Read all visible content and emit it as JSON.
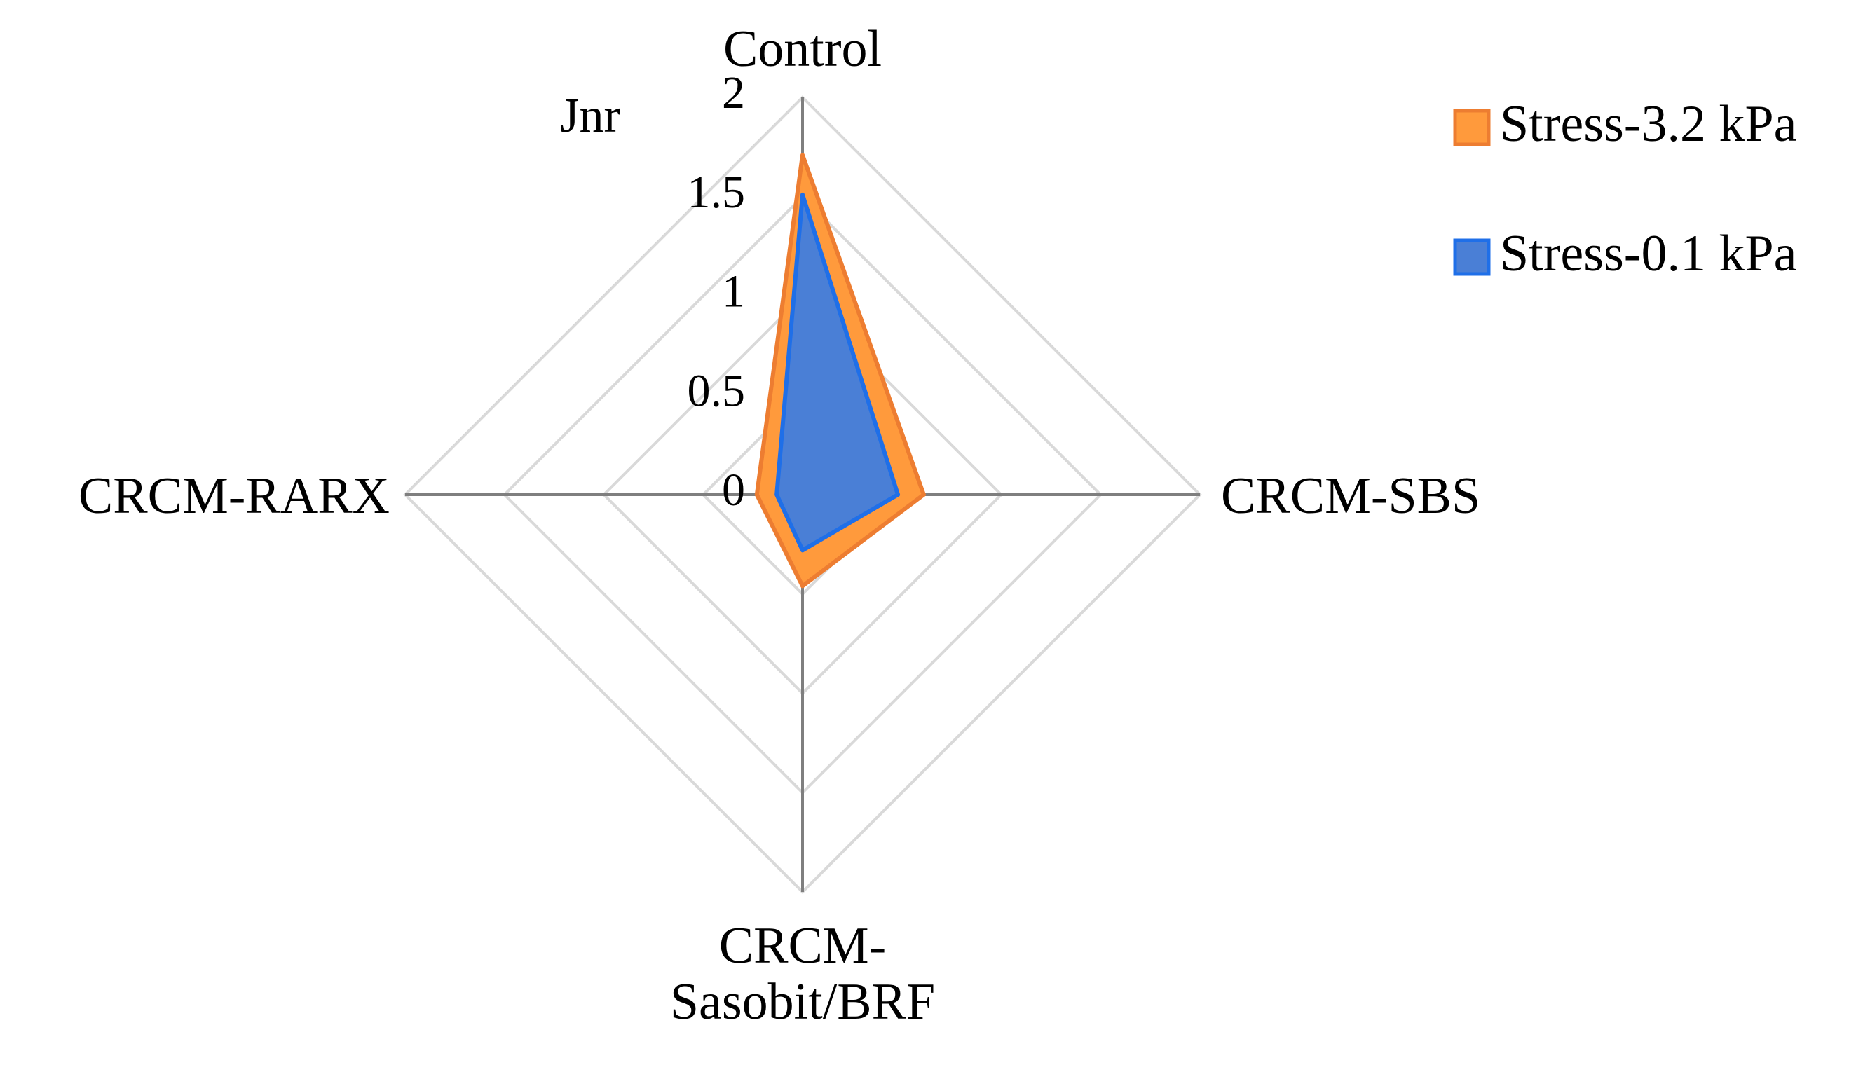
{
  "chart_data": {
    "type": "radar",
    "axis_label": "Jnr",
    "categories": [
      "Control",
      "CRCM-SBS",
      "CRCM-Sasobit/BRF",
      "CRCM-RARX"
    ],
    "series": [
      {
        "name": "Stress-3.2 kPa",
        "color": "#ed7d31",
        "fill": "#ff9a3c",
        "values": [
          1.71,
          0.61,
          0.46,
          0.23
        ]
      },
      {
        "name": "Stress-0.1 kPa",
        "color": "#1f6fe8",
        "fill": "#4a7fd6",
        "values": [
          1.51,
          0.48,
          0.28,
          0.13
        ]
      }
    ],
    "ylim": [
      0,
      2
    ],
    "yticks": [
      0,
      0.5,
      1,
      1.5,
      2
    ],
    "grid": true,
    "legend": "top-right"
  }
}
